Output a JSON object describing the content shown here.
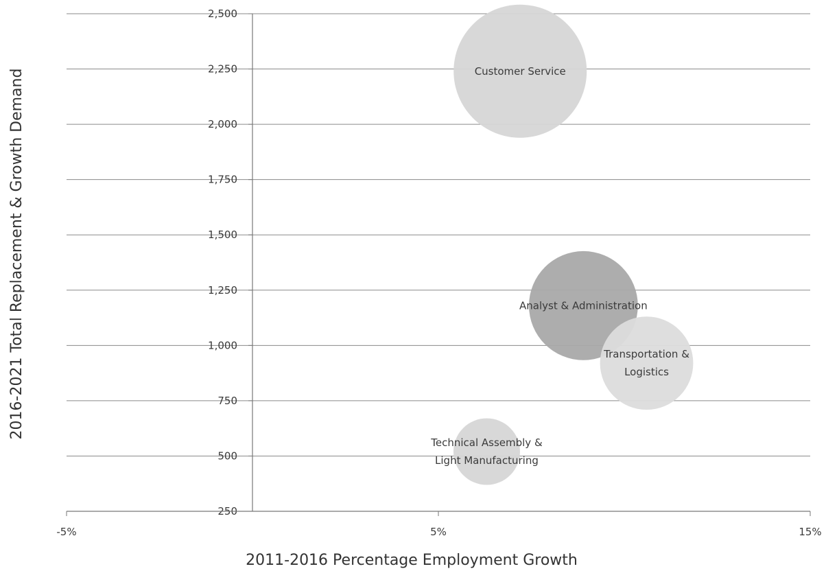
{
  "chart_data": {
    "type": "scatter",
    "title": "",
    "xlabel": "2011-2016 Percentage Employment Growth",
    "ylabel": "2016-2021 Total Replacement & Growth Demand",
    "xlim": [
      -5,
      15
    ],
    "ylim": [
      250,
      2500
    ],
    "x_ticks": [
      "-5%",
      "5%",
      "15%"
    ],
    "x_tick_values": [
      -5,
      5,
      15
    ],
    "y_ticks": [
      "250",
      "500",
      "750",
      "1,000",
      "1,250",
      "1,500",
      "1,750",
      "2,000",
      "2,250",
      "2,500"
    ],
    "y_tick_values": [
      250,
      500,
      750,
      1000,
      1250,
      1500,
      1750,
      2000,
      2250,
      2500
    ],
    "y_axis_crosses_x": 0,
    "grid": true,
    "series": [
      {
        "label": "Customer Service",
        "x": 7.2,
        "y": 2240,
        "size": 100,
        "color": "#d6d6d6"
      },
      {
        "label": "Analyst & Administration",
        "x": 8.9,
        "y": 1180,
        "size": 67,
        "color": "#a9a9a9"
      },
      {
        "label": "Transportation & Logistics",
        "x": 10.6,
        "y": 920,
        "size": 49,
        "color": "#dcdcdc"
      },
      {
        "label": "Technical Assembly & Light Manufacturing",
        "x": 6.3,
        "y": 520,
        "size": 25,
        "color": "#d6d6d6"
      }
    ]
  }
}
